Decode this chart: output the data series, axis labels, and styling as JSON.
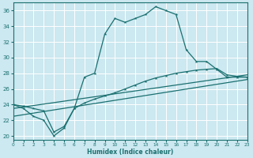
{
  "line1_x": [
    0,
    1,
    2,
    3,
    4,
    5,
    6,
    7,
    8,
    9,
    10,
    11,
    12,
    13,
    14,
    15,
    16,
    17,
    18,
    19,
    20,
    21,
    22,
    23
  ],
  "line1_y": [
    24,
    23.5,
    22.5,
    22,
    20,
    21,
    23.5,
    27.5,
    28,
    33,
    35,
    34.5,
    35,
    35.5,
    36.5,
    36,
    35.5,
    31,
    29.5,
    29.5,
    28.5,
    27.5,
    27.5,
    27.5
  ],
  "line2_x": [
    0,
    1,
    2,
    3,
    4,
    5,
    6,
    7,
    8,
    9,
    10,
    11,
    12,
    13,
    14,
    15,
    16,
    17,
    18,
    19,
    20,
    21,
    22,
    23
  ],
  "line2_y": [
    24,
    23.8,
    23.5,
    23.2,
    20.5,
    21.2,
    23.5,
    24.2,
    24.7,
    25.1,
    25.5,
    26.0,
    26.5,
    27.0,
    27.4,
    27.7,
    28.0,
    28.2,
    28.4,
    28.5,
    28.6,
    27.8,
    27.6,
    27.5
  ],
  "line3_x": [
    0,
    23
  ],
  "line3_y": [
    23.5,
    27.8
  ],
  "line4_x": [
    0,
    23
  ],
  "line4_y": [
    22.5,
    27.2
  ],
  "bg_color": "#cce8f0",
  "grid_color": "#ffffff",
  "line_color": "#1a7070",
  "xlim": [
    0,
    23
  ],
  "ylim": [
    19.5,
    37
  ],
  "yticks": [
    20,
    22,
    24,
    26,
    28,
    30,
    32,
    34,
    36
  ],
  "xticks": [
    0,
    1,
    2,
    3,
    4,
    5,
    6,
    7,
    8,
    9,
    10,
    11,
    12,
    13,
    14,
    15,
    16,
    17,
    18,
    19,
    20,
    21,
    22,
    23
  ],
  "xlabel": "Humidex (Indice chaleur)"
}
